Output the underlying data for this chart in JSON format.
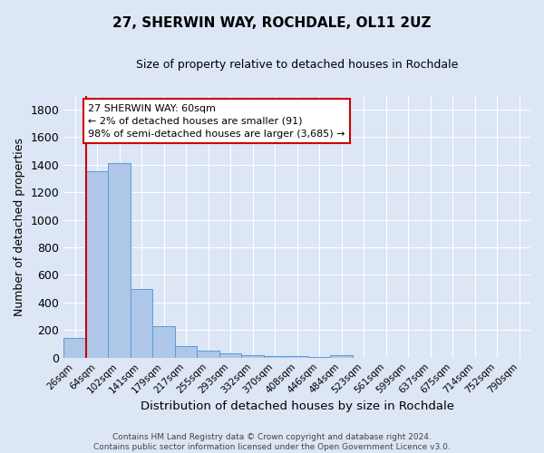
{
  "title": "27, SHERWIN WAY, ROCHDALE, OL11 2UZ",
  "subtitle": "Size of property relative to detached houses in Rochdale",
  "xlabel": "Distribution of detached houses by size in Rochdale",
  "ylabel": "Number of detached properties",
  "footer_line1": "Contains HM Land Registry data © Crown copyright and database right 2024.",
  "footer_line2": "Contains public sector information licensed under the Open Government Licence v3.0.",
  "categories": [
    "26sqm",
    "64sqm",
    "102sqm",
    "141sqm",
    "179sqm",
    "217sqm",
    "255sqm",
    "293sqm",
    "332sqm",
    "370sqm",
    "408sqm",
    "446sqm",
    "484sqm",
    "523sqm",
    "561sqm",
    "599sqm",
    "637sqm",
    "675sqm",
    "714sqm",
    "752sqm",
    "790sqm"
  ],
  "values": [
    145,
    1350,
    1410,
    495,
    225,
    85,
    50,
    30,
    20,
    10,
    10,
    8,
    15,
    0,
    0,
    0,
    0,
    0,
    0,
    0,
    0
  ],
  "bar_color": "#aec6e8",
  "bar_edge_color": "#5b9bd5",
  "background_color": "#dce6f5",
  "grid_color": "#ffffff",
  "vline_color": "#cc0000",
  "annotation_line1": "27 SHERWIN WAY: 60sqm",
  "annotation_line2": "← 2% of detached houses are smaller (91)",
  "annotation_line3": "98% of semi-detached houses are larger (3,685) →",
  "annotation_box_color": "#ffffff",
  "annotation_box_edge": "#cc0000",
  "ylim": [
    0,
    1900
  ],
  "yticks": [
    0,
    200,
    400,
    600,
    800,
    1000,
    1200,
    1400,
    1600,
    1800
  ]
}
